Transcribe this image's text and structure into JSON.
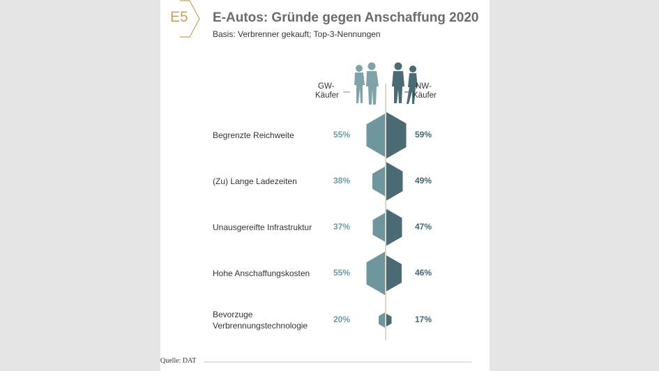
{
  "header": {
    "badge": "E5",
    "title": "E-Autos: Gründe gegen Anschaffung 2020",
    "subtitle": "Basis: Verbrenner gekauft; Top-3-Nennungen"
  },
  "legend": {
    "gw_label_line1": "GW-",
    "gw_label_line2": "Käufer",
    "nw_label_line1": "NW-",
    "nw_label_line2": "Käufer"
  },
  "colors": {
    "gw": "#6f969c",
    "nw": "#4b6b74",
    "accent": "#c3a35a",
    "axis": "#dcd8c8"
  },
  "footer": {
    "source": "Quelle: DAT"
  },
  "chart_data": {
    "type": "bar",
    "title": "E-Autos: Gründe gegen Anschaffung 2020",
    "subtitle": "Basis: Verbrenner gekauft; Top-3-Nennungen",
    "unit": "%",
    "categories": [
      "Begrenzte Reichweite",
      "(Zu) Lange Ladezeiten",
      "Unausgereifte Infrastruktur",
      "Hohe Anschaffungskosten",
      "Bevorzuge Verbrennungstechnologie"
    ],
    "category_lines": [
      [
        "Begrenzte Reichweite"
      ],
      [
        "(Zu) Lange Ladezeiten"
      ],
      [
        "Unausgereifte Infrastruktur"
      ],
      [
        "Hohe Anschaffungskosten"
      ],
      [
        "Bevorzuge",
        "Verbrennungstechnologie"
      ]
    ],
    "series": [
      {
        "name": "GW-Käufer",
        "values": [
          55,
          38,
          37,
          55,
          20
        ],
        "labels": [
          "55%",
          "38%",
          "37%",
          "55%",
          "20%"
        ]
      },
      {
        "name": "NW-Käufer",
        "values": [
          59,
          49,
          47,
          46,
          17
        ],
        "labels": [
          "59%",
          "49%",
          "47%",
          "46%",
          "17%"
        ]
      }
    ]
  }
}
